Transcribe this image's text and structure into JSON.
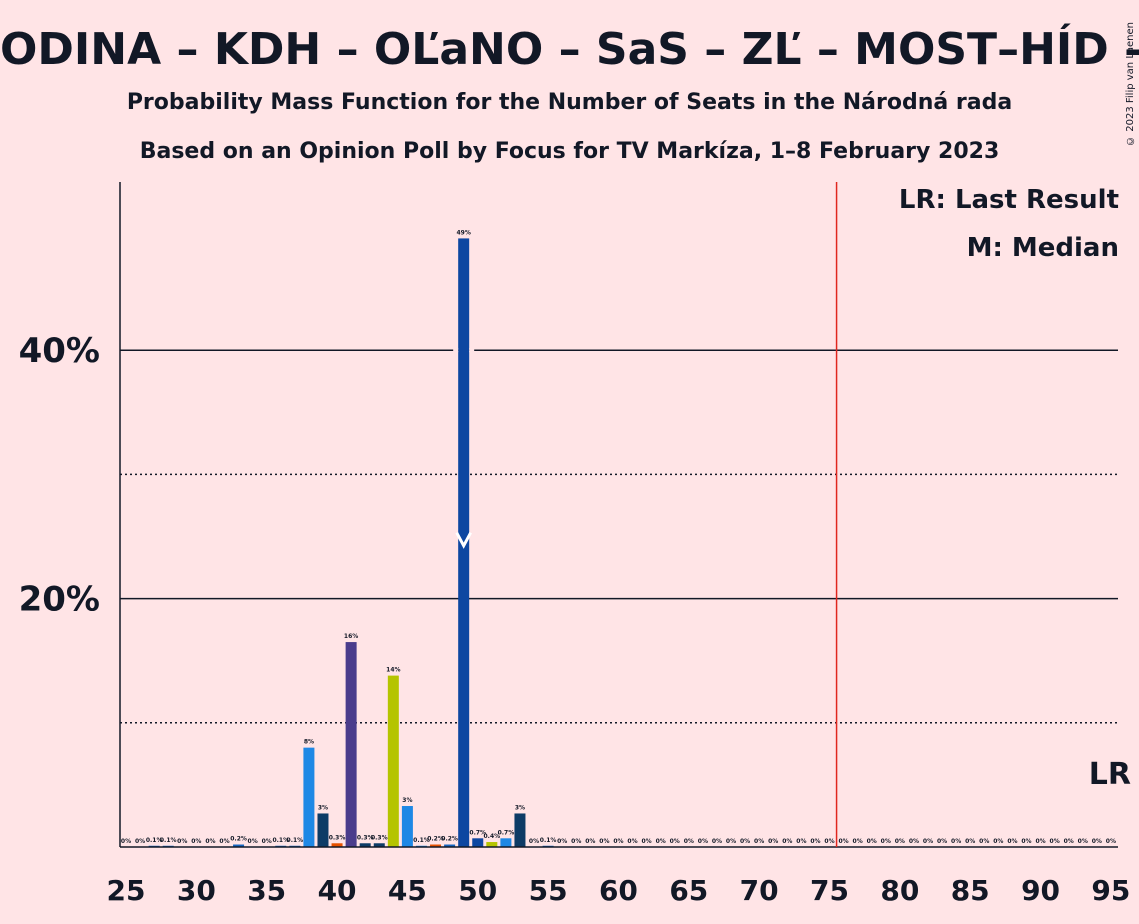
{
  "title": "ODINA – KDH – OĽaNO – SaS – ZĽ – MOST–HÍD – PS–",
  "subtitle1": "Probability Mass Function for the Number of Seats in the Národná rada",
  "subtitle2": "Based on an Opinion Poll by Focus for TV Markíza, 1–8 February 2023",
  "copyright": "© 2023 Filip van Laenen",
  "legend": {
    "lr": "LR: Last Result",
    "median": "M: Median",
    "lr_short": "LR"
  },
  "colors": {
    "background": "#FFE4E6",
    "lr_line": "#E0261F",
    "text": "#121826"
  },
  "chart_data": {
    "type": "bar",
    "xlabel": "",
    "ylabel": "",
    "xlim": [
      25,
      95
    ],
    "ylim": [
      0,
      53
    ],
    "y_ticks": [
      20,
      40
    ],
    "y_tick_labels": [
      "20%",
      "40%"
    ],
    "x_ticks": [
      25,
      30,
      35,
      40,
      45,
      50,
      55,
      60,
      65,
      70,
      75,
      80,
      85,
      90,
      95
    ],
    "solid_gridlines": [
      20,
      40
    ],
    "dotted_gridlines": [
      10,
      30
    ],
    "last_result": 76,
    "median": 49,
    "bars": [
      {
        "x": 25,
        "value": 0.0,
        "label": "0%",
        "color": "#1565C0"
      },
      {
        "x": 26,
        "value": 0.0,
        "label": "0%",
        "color": "#1565C0"
      },
      {
        "x": 27,
        "value": 0.1,
        "label": "0.1%",
        "color": "#1565C0"
      },
      {
        "x": 28,
        "value": 0.1,
        "label": "0.1%",
        "color": "#1565C0"
      },
      {
        "x": 29,
        "value": 0.0,
        "label": "0%",
        "color": "#1565C0"
      },
      {
        "x": 30,
        "value": 0.0,
        "label": "0%",
        "color": "#1565C0"
      },
      {
        "x": 31,
        "value": 0.0,
        "label": "0%",
        "color": "#1565C0"
      },
      {
        "x": 32,
        "value": 0.0,
        "label": "0%",
        "color": "#1565C0"
      },
      {
        "x": 33,
        "value": 0.2,
        "label": "0.2%",
        "color": "#1565C0"
      },
      {
        "x": 34,
        "value": 0.0,
        "label": "0%",
        "color": "#1565C0"
      },
      {
        "x": 35,
        "value": 0.0,
        "label": "0%",
        "color": "#1565C0"
      },
      {
        "x": 36,
        "value": 0.1,
        "label": "0.1%",
        "color": "#1565C0"
      },
      {
        "x": 37,
        "value": 0.1,
        "label": "0.1%",
        "color": "#1565C0"
      },
      {
        "x": 38,
        "value": 8,
        "label": "8%",
        "color": "#1E88E5"
      },
      {
        "x": 39,
        "value": 2.7,
        "label": "3%",
        "color": "#0D3B66"
      },
      {
        "x": 40,
        "value": 0.3,
        "label": "0.3%",
        "color": "#E65100"
      },
      {
        "x": 41,
        "value": 16.5,
        "label": "16%",
        "color": "#4A3C8C"
      },
      {
        "x": 42,
        "value": 0.3,
        "label": "0.3%",
        "color": "#0D3B66"
      },
      {
        "x": 43,
        "value": 0.3,
        "label": "0.3%",
        "color": "#0D3B66"
      },
      {
        "x": 44,
        "value": 13.8,
        "label": "14%",
        "color": "#B5C400"
      },
      {
        "x": 45,
        "value": 3.3,
        "label": "3%",
        "color": "#1E88E5"
      },
      {
        "x": 46,
        "value": 0.1,
        "label": "0.1%",
        "color": "#1E88E5"
      },
      {
        "x": 47,
        "value": 0.2,
        "label": "0.2%",
        "color": "#E65100"
      },
      {
        "x": 48,
        "value": 0.2,
        "label": "0.2%",
        "color": "#1565C0"
      },
      {
        "x": 49,
        "value": 49,
        "label": "49%",
        "color": "#0D47A1"
      },
      {
        "x": 50,
        "value": 0.7,
        "label": "0.7%",
        "color": "#0D47A1"
      },
      {
        "x": 51,
        "value": 0.4,
        "label": "0.4%",
        "color": "#B5C400"
      },
      {
        "x": 52,
        "value": 0.7,
        "label": "0.7%",
        "color": "#1E88E5"
      },
      {
        "x": 53,
        "value": 2.7,
        "label": "3%",
        "color": "#0D3B66"
      },
      {
        "x": 54,
        "value": 0.0,
        "label": "0%",
        "color": "#1565C0"
      },
      {
        "x": 55,
        "value": 0.1,
        "label": "0.1%",
        "color": "#1565C0"
      },
      {
        "x": 56,
        "value": 0.0,
        "label": "0%",
        "color": "#1565C0"
      },
      {
        "x": 57,
        "value": 0.0,
        "label": "0%",
        "color": "#1565C0"
      },
      {
        "x": 58,
        "value": 0.0,
        "label": "0%",
        "color": "#1565C0"
      },
      {
        "x": 59,
        "value": 0.0,
        "label": "0%",
        "color": "#1565C0"
      },
      {
        "x": 60,
        "value": 0.0,
        "label": "0%",
        "color": "#1565C0"
      },
      {
        "x": 61,
        "value": 0.0,
        "label": "0%",
        "color": "#1565C0"
      },
      {
        "x": 62,
        "value": 0.0,
        "label": "0%",
        "color": "#1565C0"
      },
      {
        "x": 63,
        "value": 0.0,
        "label": "0%",
        "color": "#1565C0"
      },
      {
        "x": 64,
        "value": 0.0,
        "label": "0%",
        "color": "#1565C0"
      },
      {
        "x": 65,
        "value": 0.0,
        "label": "0%",
        "color": "#1565C0"
      },
      {
        "x": 66,
        "value": 0.0,
        "label": "0%",
        "color": "#1565C0"
      },
      {
        "x": 67,
        "value": 0.0,
        "label": "0%",
        "color": "#1565C0"
      },
      {
        "x": 68,
        "value": 0.0,
        "label": "0%",
        "color": "#1565C0"
      },
      {
        "x": 69,
        "value": 0.0,
        "label": "0%",
        "color": "#1565C0"
      },
      {
        "x": 70,
        "value": 0.0,
        "label": "0%",
        "color": "#1565C0"
      },
      {
        "x": 71,
        "value": 0.0,
        "label": "0%",
        "color": "#1565C0"
      },
      {
        "x": 72,
        "value": 0.0,
        "label": "0%",
        "color": "#1565C0"
      },
      {
        "x": 73,
        "value": 0.0,
        "label": "0%",
        "color": "#1565C0"
      },
      {
        "x": 74,
        "value": 0.0,
        "label": "0%",
        "color": "#1565C0"
      },
      {
        "x": 75,
        "value": 0.0,
        "label": "0%",
        "color": "#1565C0"
      },
      {
        "x": 76,
        "value": 0.0,
        "label": "0%",
        "color": "#1565C0"
      },
      {
        "x": 77,
        "value": 0.0,
        "label": "0%",
        "color": "#1565C0"
      },
      {
        "x": 78,
        "value": 0.0,
        "label": "0%",
        "color": "#1565C0"
      },
      {
        "x": 79,
        "value": 0.0,
        "label": "0%",
        "color": "#1565C0"
      },
      {
        "x": 80,
        "value": 0.0,
        "label": "0%",
        "color": "#1565C0"
      },
      {
        "x": 81,
        "value": 0.0,
        "label": "0%",
        "color": "#1565C0"
      },
      {
        "x": 82,
        "value": 0.0,
        "label": "0%",
        "color": "#1565C0"
      },
      {
        "x": 83,
        "value": 0.0,
        "label": "0%",
        "color": "#1565C0"
      },
      {
        "x": 84,
        "value": 0.0,
        "label": "0%",
        "color": "#1565C0"
      },
      {
        "x": 85,
        "value": 0.0,
        "label": "0%",
        "color": "#1565C0"
      },
      {
        "x": 86,
        "value": 0.0,
        "label": "0%",
        "color": "#1565C0"
      },
      {
        "x": 87,
        "value": 0.0,
        "label": "0%",
        "color": "#1565C0"
      },
      {
        "x": 88,
        "value": 0.0,
        "label": "0%",
        "color": "#1565C0"
      },
      {
        "x": 89,
        "value": 0.0,
        "label": "0%",
        "color": "#1565C0"
      },
      {
        "x": 90,
        "value": 0.0,
        "label": "0%",
        "color": "#1565C0"
      },
      {
        "x": 91,
        "value": 0.0,
        "label": "0%",
        "color": "#1565C0"
      },
      {
        "x": 92,
        "value": 0.0,
        "label": "0%",
        "color": "#1565C0"
      },
      {
        "x": 93,
        "value": 0.0,
        "label": "0%",
        "color": "#1565C0"
      },
      {
        "x": 94,
        "value": 0.0,
        "label": "0%",
        "color": "#1565C0"
      },
      {
        "x": 95,
        "value": 0.0,
        "label": "0%",
        "color": "#1565C0"
      }
    ]
  }
}
